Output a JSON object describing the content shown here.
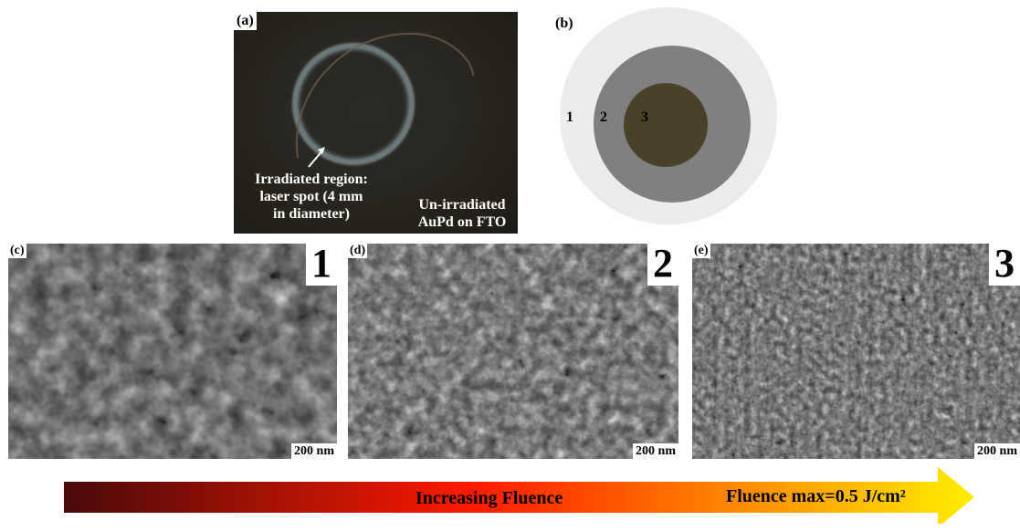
{
  "panels": {
    "a": {
      "label": "(a)",
      "irradiated_lines": [
        "Irradiated region:",
        "laser spot (4 mm",
        "in diameter)"
      ],
      "unirradiated_lines": [
        "Un-irradiated",
        "AuPd on FTO"
      ],
      "colors": {
        "background": "#2a2823",
        "spot_ring": "#8fa8b0",
        "text": "#ffffff"
      }
    },
    "b": {
      "label": "(b)",
      "regions": [
        {
          "number": "1",
          "color": "#ececec"
        },
        {
          "number": "2",
          "color": "#808080"
        },
        {
          "number": "3",
          "color": "#4a4128"
        }
      ]
    },
    "c": {
      "label": "(c)",
      "region": "1",
      "scale_bar": "200 nm"
    },
    "d": {
      "label": "(d)",
      "region": "2",
      "scale_bar": "200 nm"
    },
    "e": {
      "label": "(e)",
      "region": "3",
      "scale_bar": "200 nm"
    }
  },
  "fluence_bar": {
    "label": "Increasing Fluence",
    "max_label": "Fluence max=0.5 J/cm²",
    "colors": {
      "start": "#4a0a0a",
      "middle": "#ff1a00",
      "end": "#ffee00"
    }
  }
}
